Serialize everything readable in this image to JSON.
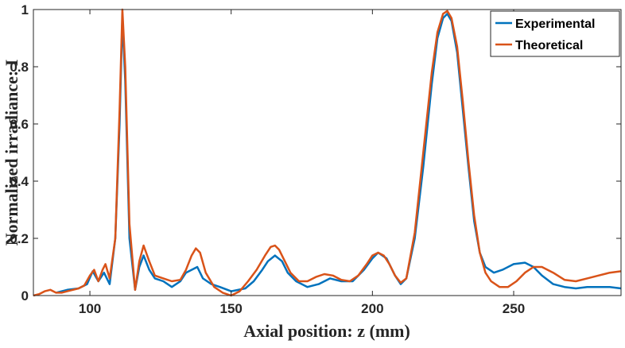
{
  "chart_data": {
    "type": "line",
    "xlabel": "Axial position: z (mm)",
    "ylabel": "Normalized irradiance: I",
    "xlim": [
      80,
      288
    ],
    "ylim": [
      0,
      1
    ],
    "xticks": [
      100,
      150,
      200,
      250
    ],
    "xtick_labels": [
      "100",
      "150",
      "200",
      "250"
    ],
    "yticks": [
      0,
      0.2,
      0.4,
      0.6,
      0.8,
      1
    ],
    "ytick_labels": [
      "0",
      "0.2",
      "0.4",
      "0.6",
      "0.8",
      "1"
    ],
    "grid": false,
    "legend_position": "top-right",
    "series": [
      {
        "name": "Experimental",
        "color": "#0072BD",
        "x": [
          88,
          92,
          96,
          99,
          101,
          103,
          105,
          107,
          109,
          110.5,
          111.5,
          112.5,
          114,
          116,
          117.5,
          119,
          121,
          123,
          126,
          129,
          132,
          134,
          136,
          138,
          140,
          143,
          146,
          150,
          155,
          158,
          161,
          163,
          165.5,
          168,
          170,
          173,
          177,
          181,
          185,
          189,
          193,
          197,
          200,
          202,
          205,
          208,
          210,
          212,
          215,
          218,
          221,
          223,
          225,
          226.5,
          228,
          230,
          232,
          234,
          236,
          238,
          240,
          243,
          246,
          250,
          254,
          257,
          260,
          264,
          268,
          272,
          276,
          280,
          284,
          288
        ],
        "y": [
          0.01,
          0.02,
          0.025,
          0.04,
          0.085,
          0.05,
          0.08,
          0.04,
          0.2,
          0.6,
          0.97,
          0.75,
          0.2,
          0.02,
          0.1,
          0.14,
          0.09,
          0.06,
          0.05,
          0.03,
          0.05,
          0.08,
          0.09,
          0.1,
          0.06,
          0.04,
          0.03,
          0.015,
          0.025,
          0.05,
          0.09,
          0.12,
          0.14,
          0.12,
          0.08,
          0.05,
          0.03,
          0.04,
          0.06,
          0.05,
          0.05,
          0.09,
          0.13,
          0.15,
          0.13,
          0.07,
          0.04,
          0.06,
          0.2,
          0.45,
          0.74,
          0.9,
          0.97,
          0.985,
          0.96,
          0.85,
          0.65,
          0.45,
          0.26,
          0.15,
          0.1,
          0.08,
          0.09,
          0.11,
          0.115,
          0.1,
          0.07,
          0.04,
          0.03,
          0.025,
          0.03,
          0.03,
          0.03,
          0.025
        ]
      },
      {
        "name": "Theoretical",
        "color": "#D95319",
        "x": [
          80,
          82,
          84,
          86,
          88,
          90,
          92,
          94,
          96,
          98,
          100,
          101.5,
          103,
          104.5,
          105.5,
          107,
          109,
          110.5,
          111.5,
          112.5,
          114,
          116,
          117.5,
          119,
          121,
          123,
          126,
          129,
          132,
          134,
          136,
          137.5,
          139,
          141,
          144,
          147,
          150,
          153,
          156,
          159,
          162,
          164,
          165.5,
          167,
          169,
          171,
          174,
          177,
          180,
          183,
          186,
          189,
          192,
          195,
          198,
          200,
          202,
          204,
          206,
          208,
          210,
          212,
          215,
          218,
          221,
          223,
          225,
          226.5,
          228,
          230,
          232,
          234,
          236,
          238,
          240,
          242,
          245,
          248,
          251,
          254,
          257,
          260,
          264,
          268,
          272,
          276,
          280,
          284,
          288
        ],
        "y": [
          0.0,
          0.005,
          0.015,
          0.02,
          0.01,
          0.01,
          0.015,
          0.02,
          0.025,
          0.035,
          0.07,
          0.09,
          0.05,
          0.09,
          0.11,
          0.06,
          0.2,
          0.65,
          1.0,
          0.8,
          0.25,
          0.02,
          0.12,
          0.175,
          0.12,
          0.07,
          0.06,
          0.05,
          0.055,
          0.09,
          0.14,
          0.165,
          0.15,
          0.08,
          0.03,
          0.01,
          0.0,
          0.015,
          0.05,
          0.09,
          0.14,
          0.17,
          0.175,
          0.16,
          0.12,
          0.08,
          0.05,
          0.05,
          0.065,
          0.075,
          0.07,
          0.055,
          0.05,
          0.07,
          0.11,
          0.14,
          0.15,
          0.14,
          0.11,
          0.07,
          0.045,
          0.06,
          0.22,
          0.5,
          0.78,
          0.92,
          0.985,
          0.995,
          0.97,
          0.87,
          0.68,
          0.47,
          0.28,
          0.15,
          0.08,
          0.05,
          0.03,
          0.03,
          0.05,
          0.08,
          0.1,
          0.1,
          0.08,
          0.055,
          0.05,
          0.06,
          0.07,
          0.08,
          0.085
        ]
      }
    ]
  }
}
